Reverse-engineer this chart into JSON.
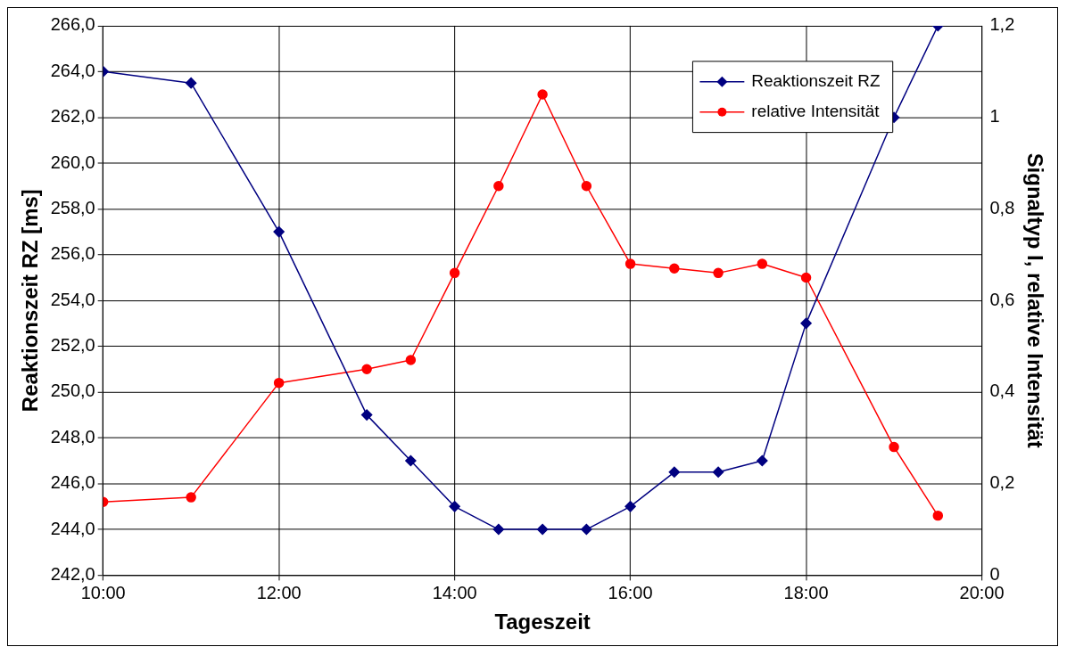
{
  "chart_data": {
    "type": "line",
    "xlabel": "Tageszeit",
    "ylabel": "Reaktionszeit RZ [ms]",
    "y2label": "Signaltyp I, relative Intensität",
    "x": [
      10,
      11,
      12,
      13,
      13.5,
      14,
      14.5,
      15,
      15.5,
      16,
      16.5,
      17,
      17.5,
      18,
      19,
      19.5
    ],
    "series": [
      {
        "name": "Reaktionszeit RZ",
        "color": "#000080",
        "marker": "diamond",
        "values": [
          264,
          263.5,
          257,
          249,
          247,
          245,
          244,
          244,
          244,
          245,
          246.5,
          246.5,
          247,
          253,
          262,
          266
        ]
      },
      {
        "name": "relative Intensität",
        "color": "#ff0000",
        "marker": "circle",
        "axis": "y2",
        "values": [
          0.16,
          0.17,
          0.42,
          0.45,
          0.47,
          0.66,
          0.85,
          1.05,
          0.85,
          0.68,
          0.67,
          0.66,
          0.68,
          0.65,
          0.28,
          0.13
        ]
      }
    ],
    "xlim": [
      10,
      20
    ],
    "xticks": [
      {
        "value": 10,
        "label": "10:00"
      },
      {
        "value": 12,
        "label": "12:00"
      },
      {
        "value": 14,
        "label": "14:00"
      },
      {
        "value": 16,
        "label": "16:00"
      },
      {
        "value": 18,
        "label": "18:00"
      },
      {
        "value": 20,
        "label": "20:00"
      }
    ],
    "ylim": [
      242,
      266
    ],
    "yticks": [
      {
        "value": 242,
        "label": "242,0"
      },
      {
        "value": 244,
        "label": "244,0"
      },
      {
        "value": 246,
        "label": "246,0"
      },
      {
        "value": 248,
        "label": "248,0"
      },
      {
        "value": 250,
        "label": "250,0"
      },
      {
        "value": 252,
        "label": "252,0"
      },
      {
        "value": 254,
        "label": "254,0"
      },
      {
        "value": 256,
        "label": "256,0"
      },
      {
        "value": 258,
        "label": "258,0"
      },
      {
        "value": 260,
        "label": "260,0"
      },
      {
        "value": 262,
        "label": "262,0"
      },
      {
        "value": 264,
        "label": "264,0"
      },
      {
        "value": 266,
        "label": "266,0"
      }
    ],
    "y2lim": [
      0,
      1.2
    ],
    "y2ticks": [
      0,
      {
        "value": 0.2,
        "label": "0,2"
      },
      {
        "value": 0.4,
        "label": "0,4"
      },
      {
        "value": 0.6,
        "label": "0,6"
      },
      {
        "value": 0.8,
        "label": "0,8"
      },
      1,
      {
        "value": 1.2,
        "label": "1,2"
      }
    ],
    "grid": true,
    "legend": "top right",
    "line_style": "solid"
  }
}
